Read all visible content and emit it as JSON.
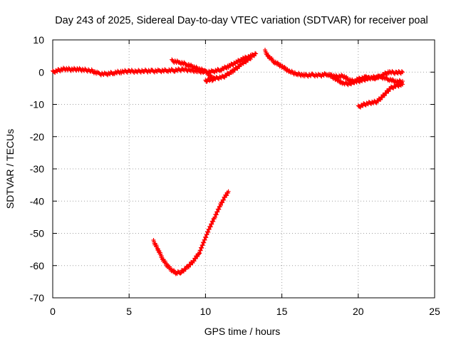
{
  "chart_data": {
    "type": "scatter",
    "title": "Day 243 of 2025, Sidereal Day-to-day VTEC variation (SDTVAR) for receiver poal",
    "xlabel": "GPS time / hours",
    "ylabel": "SDTVAR / TECUs",
    "xlim": [
      0,
      25
    ],
    "ylim": [
      -70,
      10
    ],
    "xticks": [
      0,
      5,
      10,
      15,
      20,
      25
    ],
    "yticks": [
      -70,
      -60,
      -50,
      -40,
      -30,
      -20,
      -10,
      0,
      10
    ],
    "grid": true,
    "series_color": "#ff0000",
    "series": [
      {
        "name": "upper-track",
        "marker": "plus",
        "points": [
          [
            0.0,
            0.0
          ],
          [
            0.4,
            0.6
          ],
          [
            0.8,
            1.0
          ],
          [
            1.2,
            0.8
          ],
          [
            1.6,
            0.9
          ],
          [
            2.0,
            0.7
          ],
          [
            2.5,
            0.5
          ],
          [
            3.0,
            -0.5
          ],
          [
            3.5,
            -0.6
          ],
          [
            4.0,
            -0.2
          ],
          [
            4.5,
            0.1
          ],
          [
            5.0,
            0.3
          ],
          [
            5.5,
            0.2
          ],
          [
            6.0,
            0.4
          ],
          [
            6.5,
            0.3
          ],
          [
            7.0,
            0.4
          ],
          [
            7.5,
            0.5
          ],
          [
            8.0,
            0.6
          ],
          [
            8.5,
            0.8
          ],
          [
            9.0,
            0.6
          ],
          [
            9.5,
            0.3
          ],
          [
            10.0,
            0.0
          ],
          [
            10.5,
            0.2
          ],
          [
            11.0,
            0.8
          ],
          [
            11.5,
            1.8
          ],
          [
            12.0,
            3.0
          ],
          [
            12.5,
            4.2
          ],
          [
            13.0,
            5.0
          ],
          [
            13.3,
            5.7
          ]
        ]
      },
      {
        "name": "upper-track-branch",
        "marker": "plus",
        "points": [
          [
            7.8,
            3.5
          ],
          [
            8.3,
            3.0
          ],
          [
            8.8,
            2.4
          ],
          [
            9.2,
            1.6
          ],
          [
            9.6,
            0.9
          ],
          [
            10.0,
            0.3
          ],
          [
            10.3,
            -1.2
          ],
          [
            10.6,
            -2.2
          ],
          [
            10.0,
            -2.6
          ],
          [
            11.2,
            -1.4
          ],
          [
            11.8,
            0.4
          ],
          [
            12.4,
            2.6
          ],
          [
            13.0,
            4.6
          ]
        ]
      },
      {
        "name": "upper-track-2",
        "marker": "plus",
        "points": [
          [
            13.9,
            6.5
          ],
          [
            14.1,
            5.0
          ],
          [
            14.5,
            3.2
          ],
          [
            15.0,
            1.8
          ],
          [
            15.5,
            0.2
          ],
          [
            16.0,
            -0.6
          ],
          [
            16.5,
            -1.0
          ],
          [
            17.0,
            -0.9
          ],
          [
            17.5,
            -1.0
          ],
          [
            18.0,
            -0.6
          ],
          [
            18.5,
            -2.0
          ],
          [
            19.0,
            -3.5
          ],
          [
            19.5,
            -3.6
          ],
          [
            20.0,
            -2.2
          ],
          [
            20.5,
            -1.6
          ],
          [
            21.0,
            -2.0
          ],
          [
            21.5,
            -1.1
          ],
          [
            22.0,
            0.0
          ],
          [
            22.5,
            -0.2
          ],
          [
            22.9,
            0.0
          ]
        ]
      },
      {
        "name": "upper-track-2-branch",
        "marker": "plus",
        "points": [
          [
            18.2,
            -1.0
          ],
          [
            18.6,
            -1.4
          ],
          [
            19.0,
            -1.2
          ],
          [
            19.4,
            -2.4
          ],
          [
            19.8,
            -3.0
          ],
          [
            20.2,
            -2.6
          ],
          [
            20.6,
            -2.0
          ],
          [
            21.0,
            -1.6
          ],
          [
            21.5,
            -1.5
          ],
          [
            22.0,
            -2.2
          ],
          [
            22.5,
            -3.0
          ],
          [
            22.9,
            -2.8
          ]
        ]
      },
      {
        "name": "lower-recovery",
        "marker": "plus",
        "points": [
          [
            20.0,
            -10.8
          ],
          [
            20.4,
            -10.0
          ],
          [
            20.8,
            -9.5
          ],
          [
            21.2,
            -9.2
          ],
          [
            21.5,
            -8.0
          ],
          [
            21.8,
            -6.5
          ],
          [
            22.1,
            -5.0
          ],
          [
            22.5,
            -4.2
          ],
          [
            22.9,
            -3.8
          ]
        ]
      },
      {
        "name": "deep-dip",
        "marker": "plus",
        "points": [
          [
            6.6,
            -52.5
          ],
          [
            6.9,
            -55.0
          ],
          [
            7.2,
            -58.0
          ],
          [
            7.5,
            -60.0
          ],
          [
            7.8,
            -61.5
          ],
          [
            8.1,
            -62.3
          ],
          [
            8.4,
            -62.0
          ],
          [
            8.8,
            -60.6
          ],
          [
            9.2,
            -58.6
          ],
          [
            9.6,
            -56.0
          ],
          [
            9.9,
            -52.5
          ],
          [
            10.2,
            -49.0
          ],
          [
            10.6,
            -45.0
          ],
          [
            11.0,
            -41.0
          ],
          [
            11.3,
            -38.5
          ],
          [
            11.5,
            -37.0
          ]
        ]
      }
    ]
  }
}
